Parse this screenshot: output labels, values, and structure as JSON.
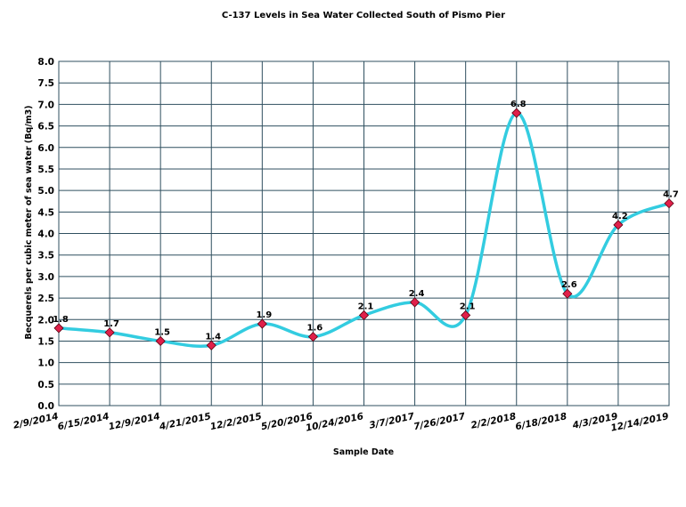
{
  "chart_data": {
    "type": "line",
    "title": "C-137 Levels in Sea Water Collected South of Pismo Pier",
    "xlabel": "Sample Date",
    "ylabel": "Becquerels per cubic meter of sea water  (Bq/m3)",
    "categories": [
      "2/9/2014",
      "6/15/2014",
      "12/9/2014",
      "4/21/2015",
      "12/2/2015",
      "5/20/2016",
      "10/24/2016",
      "3/7/2017",
      "7/26/2017",
      "2/2/2018",
      "6/18/2018",
      "4/3/2019",
      "12/14/2019"
    ],
    "series": [
      {
        "values": [
          1.8,
          1.7,
          1.5,
          1.4,
          1.9,
          1.6,
          2.1,
          2.4,
          2.1,
          6.8,
          2.6,
          4.2,
          4.7
        ],
        "labels": [
          "1.8",
          "1.7",
          "1.5",
          "1.4",
          "1.9",
          "1.6",
          "2.1",
          "2.4",
          "2.1",
          "6.8",
          "2.6",
          "4.2",
          "4.7"
        ],
        "line_color": "#33cce0",
        "marker_color": "#e0204a",
        "marker": "diamond",
        "smoothed": true
      }
    ],
    "ylim": [
      0,
      8
    ],
    "ystep": 0.5,
    "yticks": [
      "0.0",
      "0.5",
      "1.0",
      "1.5",
      "2.0",
      "2.5",
      "3.0",
      "3.5",
      "4.0",
      "4.5",
      "5.0",
      "5.5",
      "6.0",
      "6.5",
      "7.0",
      "7.5",
      "8.0"
    ],
    "grid": true,
    "grid_color": "#2f4f5f",
    "legend": "none"
  }
}
